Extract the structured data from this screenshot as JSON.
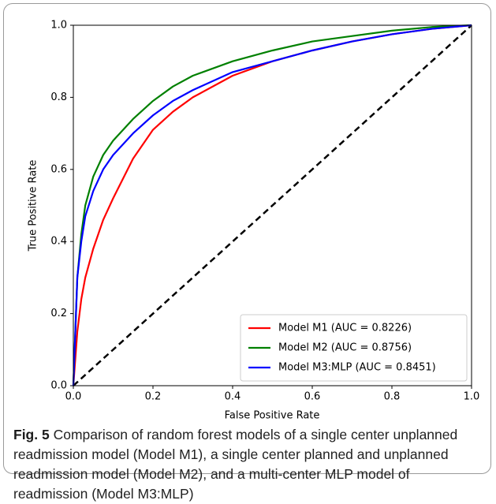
{
  "chart_data": {
    "type": "line",
    "xlabel": "False Positive Rate",
    "ylabel": "True Positive Rate",
    "x": [
      0,
      0.01,
      0.02,
      0.03,
      0.05,
      0.075,
      0.1,
      0.15,
      0.2,
      0.25,
      0.3,
      0.4,
      0.5,
      0.6,
      0.7,
      0.8,
      0.9,
      1.0
    ],
    "series": [
      {
        "name": "Model M1 (AUC = 0.8226)",
        "color": "#ff0000",
        "values": [
          0,
          0.15,
          0.24,
          0.3,
          0.38,
          0.46,
          0.52,
          0.63,
          0.71,
          0.76,
          0.8,
          0.86,
          0.9,
          0.93,
          0.955,
          0.975,
          0.99,
          1.0
        ]
      },
      {
        "name": "Model M2 (AUC = 0.8756)",
        "color": "#008000",
        "values": [
          0,
          0.3,
          0.42,
          0.5,
          0.58,
          0.64,
          0.68,
          0.74,
          0.79,
          0.83,
          0.86,
          0.9,
          0.93,
          0.955,
          0.97,
          0.985,
          0.995,
          1.0
        ]
      },
      {
        "name": "Model M3:MLP (AUC = 0.8451)",
        "color": "#0000ff",
        "values": [
          0,
          0.3,
          0.4,
          0.47,
          0.54,
          0.6,
          0.64,
          0.7,
          0.75,
          0.79,
          0.82,
          0.87,
          0.9,
          0.93,
          0.955,
          0.975,
          0.99,
          1.0
        ]
      }
    ],
    "xlim": [
      0,
      1
    ],
    "ylim": [
      0,
      1
    ],
    "xticks": [
      {
        "value": 0,
        "label": "0.0"
      },
      0.2,
      0.4,
      0.6,
      0.8,
      {
        "value": 1,
        "label": "1.0"
      }
    ],
    "yticks": [
      {
        "value": 0,
        "label": "0.0"
      },
      0.2,
      0.4,
      0.6,
      0.8,
      {
        "value": 1,
        "label": "1.0"
      }
    ],
    "grid": false,
    "legend": "lower right"
  },
  "caption": {
    "label": "Fig. 5",
    "text": "Comparison of random forest models of a single center unplanned readmission model (Model M1), a single center planned and unplanned readmission model (Model M2), and a multi-center MLP model of readmission (Model M3:MLP)"
  }
}
